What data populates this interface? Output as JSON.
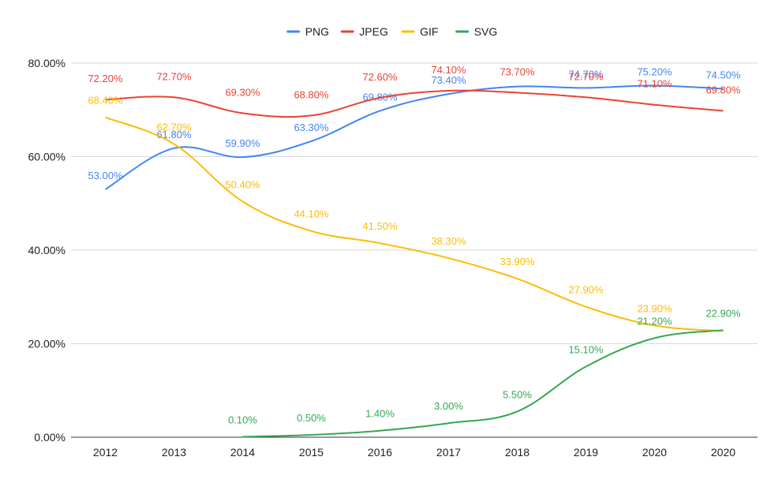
{
  "chart_data": {
    "type": "line",
    "title": "",
    "xlabel": "",
    "ylabel": "",
    "categories": [
      "2012",
      "2013",
      "2014",
      "2015",
      "2016",
      "2017",
      "2018",
      "2019",
      "2020",
      "2020"
    ],
    "ylim": [
      0,
      80
    ],
    "y_ticks": [
      0,
      20,
      40,
      60,
      80
    ],
    "y_tick_labels": [
      "0.00%",
      "20.00%",
      "40.00%",
      "60.00%",
      "80.00%"
    ],
    "grid": true,
    "legend_position": "top-center",
    "series": [
      {
        "name": "PNG",
        "color": "#4285f4",
        "values": [
          53.0,
          61.8,
          59.9,
          63.3,
          69.8,
          73.4,
          75.0,
          74.7,
          75.2,
          74.5
        ],
        "labels": [
          "53.00%",
          "61.80%",
          "59.90%",
          "63.30%",
          "69.80%",
          "73.40%",
          "",
          "74.70%",
          "75.20%",
          "74.50%"
        ]
      },
      {
        "name": "JPEG",
        "color": "#ea4335",
        "values": [
          72.2,
          72.7,
          69.3,
          68.8,
          72.6,
          74.1,
          73.7,
          72.7,
          71.1,
          69.8
        ],
        "labels": [
          "72.20%",
          "72.70%",
          "69.30%",
          "68.80%",
          "72.60%",
          "74.10%",
          "73.70%",
          "72.70%",
          "71.10%",
          "69.80%"
        ]
      },
      {
        "name": "GIF",
        "color": "#fbbc04",
        "values": [
          68.4,
          62.7,
          50.4,
          44.1,
          41.5,
          38.3,
          33.9,
          27.9,
          23.9,
          22.7
        ],
        "labels": [
          "68.40%",
          "62.70%",
          "50.40%",
          "44.10%",
          "41.50%",
          "38.30%",
          "33.90%",
          "27.90%",
          "23.90%",
          ""
        ]
      },
      {
        "name": "SVG",
        "color": "#34a853",
        "values": [
          null,
          null,
          0.1,
          0.5,
          1.4,
          3.0,
          5.5,
          15.1,
          21.2,
          22.9
        ],
        "labels": [
          "",
          "",
          "0.10%",
          "0.50%",
          "1.40%",
          "3.00%",
          "5.50%",
          "15.10%",
          "21.20%",
          "22.90%"
        ]
      }
    ]
  }
}
